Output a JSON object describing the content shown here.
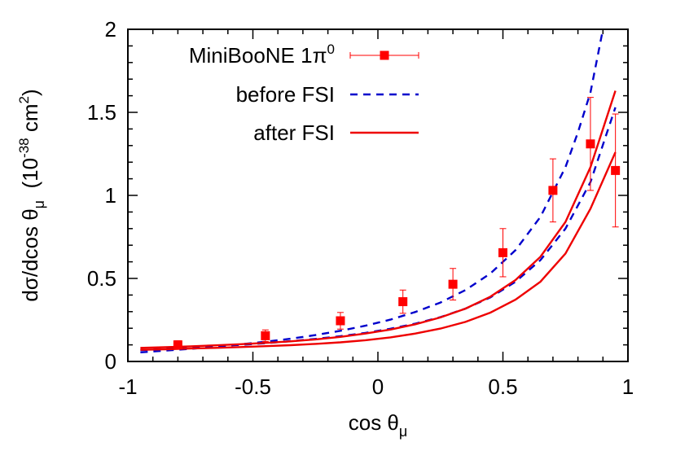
{
  "chart_data": {
    "type": "line",
    "xlabel": "cos θ",
    "xlabel_sub": "μ",
    "ylabel": "dσ/dcos θ",
    "ylabel_sub": "μ",
    "yunit_pre": "(10",
    "yunit_exp": "-38",
    "yunit_mid": " cm",
    "yunit_exp2": "2",
    "yunit_post": ")",
    "xlim": [
      -1,
      1
    ],
    "ylim": [
      0,
      2
    ],
    "xticks": [
      -1,
      -0.5,
      0,
      0.5,
      1
    ],
    "xtick_labels": [
      "-1",
      "-0.5",
      "0",
      "0.5",
      "1"
    ],
    "yticks": [
      0,
      0.5,
      1,
      1.5,
      2
    ],
    "ytick_labels": [
      "0",
      "0.5",
      "1",
      "1.5",
      "2"
    ],
    "grid": false,
    "legend_position": "top-left",
    "legend": [
      {
        "label": "MiniBooNE 1π",
        "sup": "0",
        "style": "points"
      },
      {
        "label": "before FSI",
        "sup": "",
        "style": "dashed"
      },
      {
        "label": "after FSI",
        "sup": "",
        "style": "solid"
      }
    ],
    "data_points": {
      "name": "MiniBooNE 1π0",
      "color": "#ff0000",
      "x": [
        -0.8,
        -0.45,
        -0.15,
        0.1,
        0.3,
        0.5,
        0.7,
        0.85,
        0.95
      ],
      "y": [
        0.1,
        0.155,
        0.245,
        0.36,
        0.465,
        0.655,
        1.03,
        1.31,
        1.15
      ],
      "err": [
        0.025,
        0.035,
        0.05,
        0.07,
        0.095,
        0.145,
        0.19,
        0.28,
        0.34
      ]
    },
    "series": [
      {
        "name": "before FSI",
        "group": "before FSI",
        "style": "dashed",
        "color": "#0000cc",
        "x": [
          -0.95,
          -0.85,
          -0.75,
          -0.65,
          -0.55,
          -0.45,
          -0.35,
          -0.25,
          -0.15,
          -0.05,
          0.05,
          0.15,
          0.25,
          0.35,
          0.45,
          0.55,
          0.65,
          0.75,
          0.85,
          0.95
        ],
        "y": [
          0.068,
          0.075,
          0.083,
          0.091,
          0.1,
          0.11,
          0.122,
          0.136,
          0.152,
          0.172,
          0.197,
          0.228,
          0.267,
          0.318,
          0.386,
          0.48,
          0.61,
          0.8,
          1.08,
          1.53
        ]
      },
      {
        "name": "before FSI (upper)",
        "group": "before FSI",
        "style": "dashed",
        "color": "#0000cc",
        "x": [
          -0.95,
          -0.85,
          -0.75,
          -0.65,
          -0.55,
          -0.45,
          -0.35,
          -0.25,
          -0.15,
          -0.05,
          0.05,
          0.15,
          0.25,
          0.35,
          0.45,
          0.55,
          0.65,
          0.75,
          0.8,
          0.85,
          0.9
        ],
        "y": [
          0.055,
          0.065,
          0.076,
          0.089,
          0.103,
          0.119,
          0.137,
          0.159,
          0.185,
          0.215,
          0.252,
          0.298,
          0.355,
          0.43,
          0.53,
          0.67,
          0.87,
          1.17,
          1.38,
          1.62,
          2.0
        ]
      },
      {
        "name": "after FSI",
        "group": "after FSI",
        "style": "solid",
        "color": "#ee0000",
        "x": [
          -0.95,
          -0.85,
          -0.75,
          -0.65,
          -0.55,
          -0.45,
          -0.35,
          -0.25,
          -0.15,
          -0.05,
          0.05,
          0.15,
          0.25,
          0.35,
          0.45,
          0.55,
          0.65,
          0.75,
          0.85,
          0.95
        ],
        "y": [
          0.07,
          0.073,
          0.078,
          0.082,
          0.087,
          0.092,
          0.098,
          0.106,
          0.115,
          0.128,
          0.145,
          0.168,
          0.198,
          0.238,
          0.294,
          0.372,
          0.48,
          0.65,
          0.92,
          1.26
        ]
      },
      {
        "name": "after FSI (upper)",
        "group": "after FSI",
        "style": "solid",
        "color": "#ee0000",
        "x": [
          -0.95,
          -0.85,
          -0.75,
          -0.65,
          -0.55,
          -0.45,
          -0.35,
          -0.25,
          -0.15,
          -0.05,
          0.05,
          0.15,
          0.25,
          0.35,
          0.45,
          0.55,
          0.65,
          0.75,
          0.85,
          0.95
        ],
        "y": [
          0.082,
          0.086,
          0.091,
          0.097,
          0.104,
          0.112,
          0.121,
          0.133,
          0.148,
          0.168,
          0.192,
          0.224,
          0.265,
          0.318,
          0.39,
          0.49,
          0.63,
          0.84,
          1.17,
          1.63
        ]
      }
    ]
  }
}
